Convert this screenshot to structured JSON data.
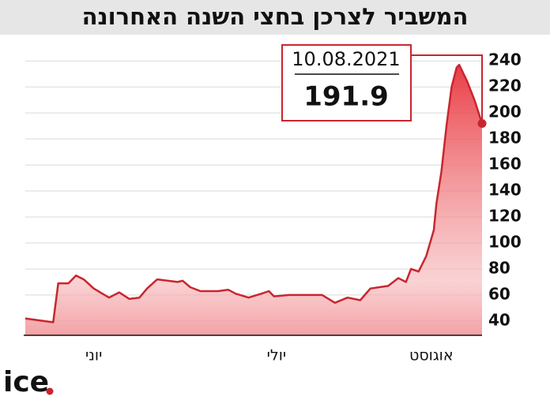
{
  "chart_data": {
    "type": "line",
    "title": "המשביר לצרכן בחצי השנה האחרונה",
    "x": [
      0,
      11,
      13,
      17,
      20,
      23,
      27,
      33,
      37,
      41,
      45,
      48,
      52,
      56,
      60,
      62,
      65,
      69,
      76,
      80,
      83,
      88,
      93,
      96,
      98,
      104,
      108,
      113,
      117,
      122,
      127,
      132,
      136,
      143,
      147,
      150,
      152,
      155,
      158,
      161,
      162,
      164,
      166,
      168,
      170,
      171,
      174,
      177,
      180
    ],
    "series": [
      {
        "color": "#c8262e",
        "values": [
          42,
          39,
          69,
          69,
          75,
          72,
          65,
          58,
          62,
          57,
          58,
          65,
          72,
          71,
          70,
          71,
          66,
          63,
          63,
          64,
          61,
          58,
          61,
          63,
          59,
          60,
          60,
          60,
          60,
          54,
          58,
          56,
          65,
          67,
          73,
          70,
          80,
          78,
          90,
          110,
          130,
          155,
          190,
          220,
          235,
          237,
          225,
          210,
          191.9
        ]
      }
    ],
    "xlim": [
      0,
      180
    ],
    "xticks": [
      {
        "value": 27,
        "label": "יוני"
      },
      {
        "value": 99,
        "label": "יולי"
      },
      {
        "value": 160,
        "label": "אוגוסט"
      }
    ],
    "ylim": [
      29,
      245
    ],
    "yticks": [
      40,
      60,
      80,
      100,
      120,
      140,
      160,
      180,
      200,
      220,
      240
    ],
    "grid": true,
    "annotation": {
      "label": "10.08.2021",
      "value": 191.9
    },
    "logo": "ice"
  }
}
